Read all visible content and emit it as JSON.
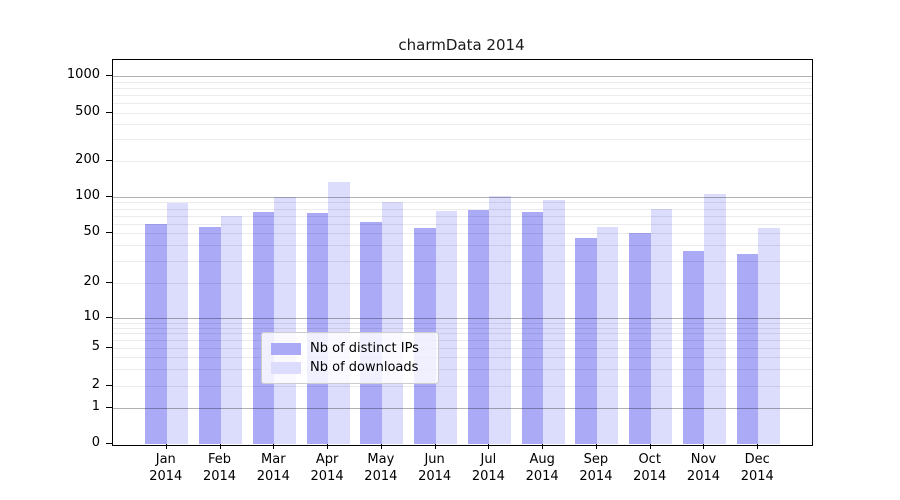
{
  "chart_data": {
    "type": "bar",
    "title": "charmData 2014",
    "scale": "symlog",
    "grid": true,
    "legend_position": "lower center",
    "xlabel": "",
    "ylabel": "",
    "categories": [
      "Jan",
      "Feb",
      "Mar",
      "Apr",
      "May",
      "Jun",
      "Jul",
      "Aug",
      "Sep",
      "Oct",
      "Nov",
      "Dec"
    ],
    "year": "2014",
    "yticks": [
      0,
      1,
      2,
      5,
      10,
      20,
      50,
      100,
      200,
      500,
      1000
    ],
    "ylim": [
      0,
      1400
    ],
    "series": [
      {
        "name": "Nb of distinct IPs",
        "color": "#aaaaf7",
        "values": [
          60,
          56,
          75,
          73,
          62,
          55,
          78,
          75,
          46,
          50,
          36,
          34
        ]
      },
      {
        "name": "Nb of downloads",
        "color": "#dcdcfc",
        "values": [
          89,
          70,
          100,
          132,
          90,
          76,
          101,
          95,
          56,
          79,
          105,
          55
        ]
      }
    ]
  },
  "colors": {
    "major_grid": "#b3b3b3",
    "minor_grid": "#ebebeb",
    "spine": "#000000",
    "background": "#ffffff"
  }
}
